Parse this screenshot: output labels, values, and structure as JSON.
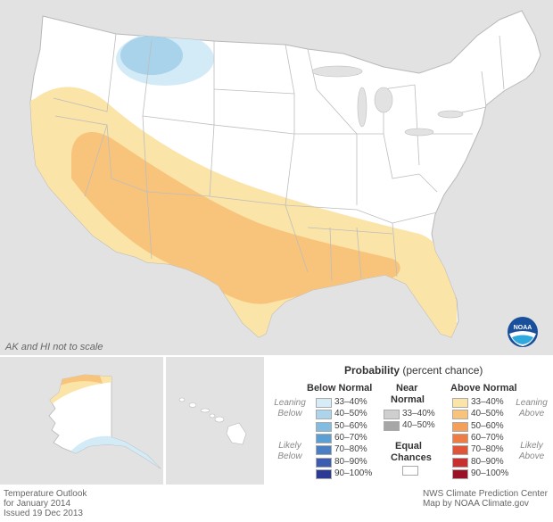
{
  "map": {
    "scale_note": "AK and HI not to scale",
    "logo_text": "NOAA",
    "colors": {
      "background": "#e2e2e2",
      "land": "#ffffff",
      "border": "#b8b8b8",
      "above_33_40": "#fbe4a8",
      "above_40_50": "#f8c47c",
      "below_33_40": "#d3ebf6",
      "below_40_50": "#a9d3ea"
    }
  },
  "legend": {
    "title_bold": "Probability",
    "title_rest": " (percent chance)",
    "below_normal_label": "Below Normal",
    "near_normal_label_1": "Near",
    "near_normal_label_2": "Normal",
    "above_normal_label": "Above Normal",
    "leaning_below_1": "Leaning",
    "leaning_below_2": "Below",
    "likely_below_1": "Likely",
    "likely_below_2": "Below",
    "leaning_above_1": "Leaning",
    "leaning_above_2": "Above",
    "likely_above_1": "Likely",
    "likely_above_2": "Above",
    "equal_chances_1": "Equal",
    "equal_chances_2": "Chances",
    "below": [
      {
        "range": "33–40%",
        "color": "#d6ecf7"
      },
      {
        "range": "40–50%",
        "color": "#acd5ec"
      },
      {
        "range": "50–60%",
        "color": "#82bde1"
      },
      {
        "range": "60–70%",
        "color": "#5b9fd3"
      },
      {
        "range": "70–80%",
        "color": "#4a7fc3"
      },
      {
        "range": "80–90%",
        "color": "#3b5cb0"
      },
      {
        "range": "90–100%",
        "color": "#2b3a94"
      }
    ],
    "near": [
      {
        "range": "33–40%",
        "color": "#cfcfcf"
      },
      {
        "range": "40–50%",
        "color": "#a6a6a6"
      }
    ],
    "above": [
      {
        "range": "33–40%",
        "color": "#fbe4a8"
      },
      {
        "range": "40–50%",
        "color": "#f8c47c"
      },
      {
        "range": "50–60%",
        "color": "#f5a05a"
      },
      {
        "range": "60–70%",
        "color": "#ee7c45"
      },
      {
        "range": "70–80%",
        "color": "#e0553a"
      },
      {
        "range": "80–90%",
        "color": "#c8302f"
      },
      {
        "range": "90–100%",
        "color": "#9b1226"
      }
    ]
  },
  "footer": {
    "left_line1": "Temperature Outlook",
    "left_line2": "for January 2014",
    "left_line3": "Issued 19 Dec 2013",
    "right_line1": "NWS Climate Prediction Center",
    "right_line2": "Map by NOAA Climate.gov"
  }
}
